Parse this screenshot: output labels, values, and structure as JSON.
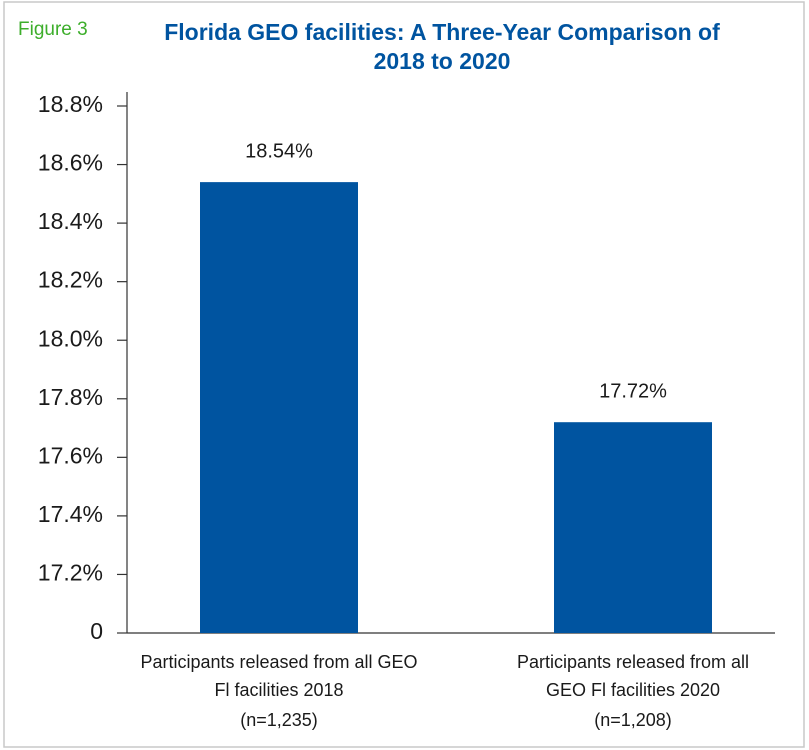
{
  "chart_data": {
    "type": "bar",
    "figure_label": "Figure 3",
    "title": [
      "Florida GEO facilities: A Three-Year Comparison of",
      "2018 to 2020"
    ],
    "categories": [
      [
        "Participants released from all GEO",
        "Fl facilities 2018",
        "(n=1,235)"
      ],
      [
        "Participants released from all",
        "GEO Fl facilities 2020",
        "(n=1,208)"
      ]
    ],
    "values": [
      18.54,
      17.72
    ],
    "value_labels": [
      "18.54%",
      "17.72%"
    ],
    "color": "#0054a0",
    "ylim": [
      0,
      18.8
    ],
    "axis_break": [
      0,
      17
    ],
    "yticks": [
      0,
      {
        "value": 17.2,
        "label": "17.2%"
      },
      {
        "value": 17.4,
        "label": "17.4%"
      },
      {
        "value": 17.6,
        "label": "17.6%"
      },
      {
        "value": 17.8,
        "label": "17.8%"
      },
      {
        "value": 18.0,
        "label": "18.0%"
      },
      {
        "value": 18.2,
        "label": "18.2%"
      },
      {
        "value": 18.4,
        "label": "18.4%"
      },
      {
        "value": 18.6,
        "label": "18.6%"
      },
      {
        "value": 18.8,
        "label": "18.8%"
      }
    ],
    "grid": false
  }
}
